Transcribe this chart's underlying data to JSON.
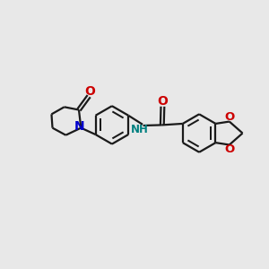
{
  "background_color": "#e8e8e8",
  "bond_color": "#1a1a1a",
  "N_color": "#0000cc",
  "O_color": "#cc0000",
  "NH_color": "#008080",
  "lw": 1.6,
  "figsize": [
    3.0,
    3.0
  ],
  "dpi": 100,
  "xlim": [
    0,
    10
  ],
  "ylim": [
    0,
    10
  ]
}
